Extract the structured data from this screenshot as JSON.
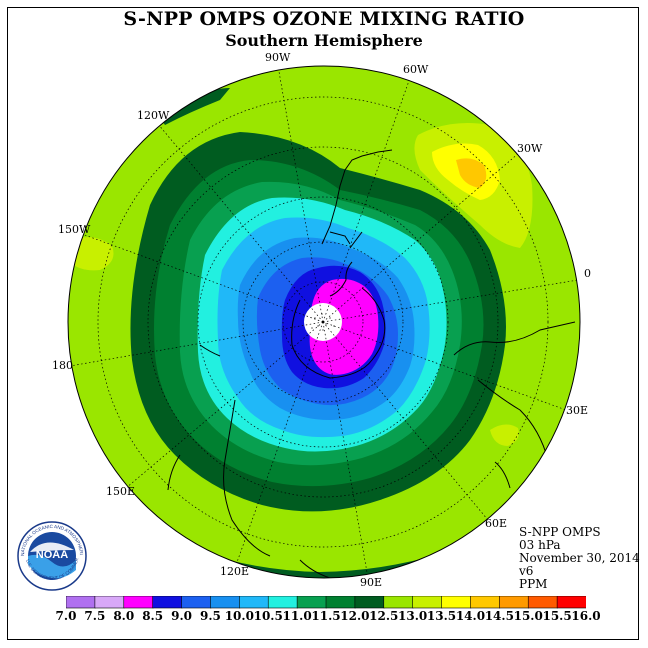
{
  "title": "S-NPP OMPS OZONE MIXING RATIO",
  "subtitle": "Southern Hemisphere",
  "longitude_labels": {
    "lon_90w": "90W",
    "lon_60w": "60W",
    "lon_30w": "30W",
    "lon_0": "0",
    "lon_30e": "30E",
    "lon_60e": "60E",
    "lon_90e": "90E",
    "lon_120e": "120E",
    "lon_150e": "150E",
    "lon_180": "180",
    "lon_150w": "150W",
    "lon_120w": "120W"
  },
  "info": {
    "instrument": "S-NPP OMPS",
    "level": "03 hPa",
    "date": "November 30, 2014",
    "version": "v6",
    "units": "PPM"
  },
  "logo": {
    "text": "NOAA",
    "ring_text": "NATIONAL OCEANIC AND ATMOSPHERIC ADMINISTRATION",
    "ring_text_bottom": "U.S. DEPARTMENT OF COMMERCE"
  },
  "colorbar": {
    "ticks": [
      "7.0",
      "7.5",
      "8.0",
      "8.5",
      "9.0",
      "9.5",
      "10.0",
      "10.5",
      "11.0",
      "11.5",
      "12.0",
      "12.5",
      "13.0",
      "13.5",
      "14.0",
      "14.5",
      "15.0",
      "15.5",
      "16.0"
    ],
    "colors": [
      "#b070f0",
      "#d8a8f8",
      "#ff00ff",
      "#1010e0",
      "#1c60f0",
      "#1890f0",
      "#20b8f8",
      "#22f0e0",
      "#08a050",
      "#008030",
      "#005c20",
      "#9ae600",
      "#c8f000",
      "#ffff00",
      "#ffc800",
      "#ff9a00",
      "#ff5a00",
      "#ff0000",
      "#8b5a3c"
    ]
  },
  "chart_data": {
    "type": "polar-stereographic contour map",
    "variable": "ozone mixing ratio (PPM)",
    "pressure_level": "03 hPa",
    "hemisphere": "Southern",
    "date": "November 30, 2014",
    "contour_levels": [
      7.0,
      7.5,
      8.0,
      8.5,
      9.0,
      9.5,
      10.0,
      10.5,
      11.0,
      11.5,
      12.0,
      12.5,
      13.0,
      13.5,
      14.0,
      14.5,
      15.0,
      15.5,
      16.0
    ],
    "field_description_levels": {
      "polar_core": 8.0,
      "inner_ring": 8.5,
      "ring_2": 9.0,
      "ring_3": 9.5,
      "ring_4": 10.0,
      "ring_5": 10.5,
      "ring_6": 11.0,
      "ring_7": 11.5,
      "ring_8": 12.0,
      "background": 12.5,
      "highs_30w": 13.5,
      "highs_peak": 14.0
    }
  }
}
